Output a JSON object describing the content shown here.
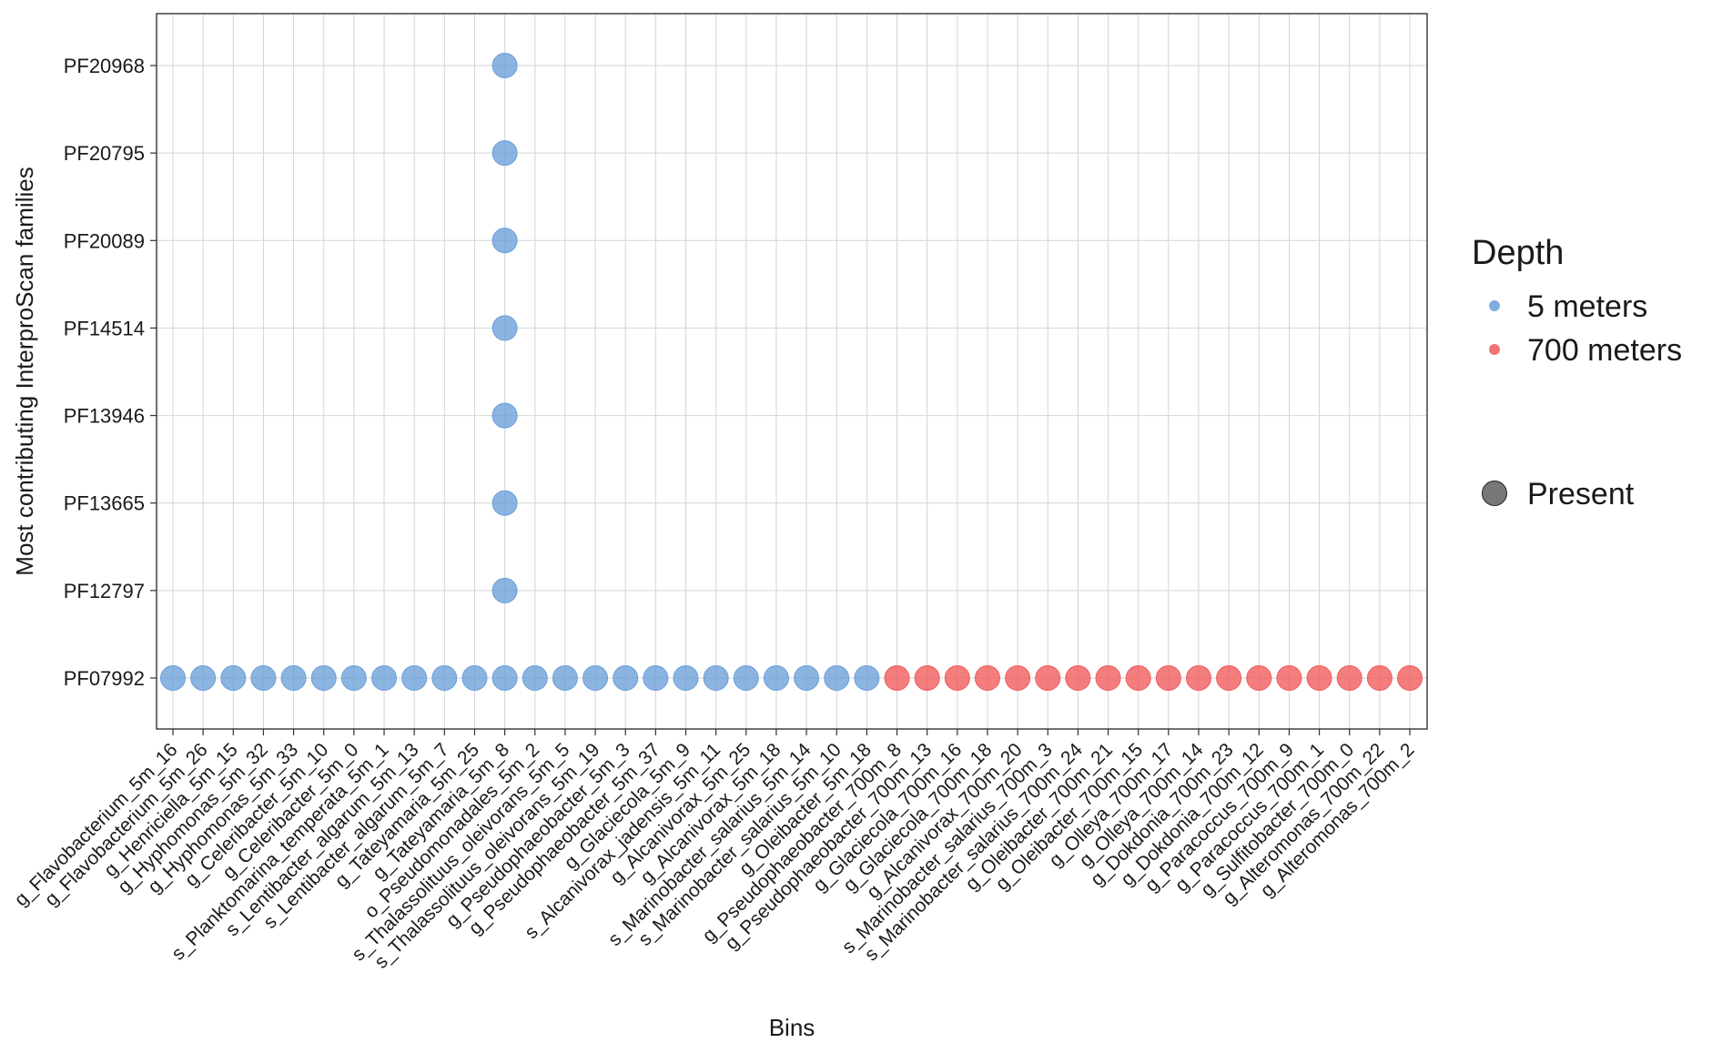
{
  "chart_data": {
    "type": "scatter",
    "xlabel": "Bins",
    "ylabel": "Most contributing InterproScan families",
    "x_categories": [
      "g_Flavobacterium_5m_16",
      "g_Flavobacterium_5m_26",
      "g_Henriciella_5m_15",
      "g_Hyphomonas_5m_32",
      "g_Hyphomonas_5m_33",
      "g_Celeribacter_5m_10",
      "g_Celeribacter_5m_0",
      "s_Planktomarina_temperata_5m_1",
      "s_Lentibacter_algarum_5m_13",
      "s_Lentibacter_algarum_5m_7",
      "g_Tateyamaria_5m_25",
      "g_Tateyamaria_5m_8",
      "o_Pseudomonadales_5m_2",
      "s_Thalassolituus_oleivorans_5m_5",
      "s_Thalassolituus_oleivorans_5m_19",
      "g_Pseudophaeobacter_5m_3",
      "g_Pseudophaeobacter_5m_37",
      "g_Glaciecola_5m_9",
      "s_Alcanivorax_jadensis_5m_11",
      "g_Alcanivorax_5m_25",
      "g_Alcanivorax_5m_18",
      "s_Marinobacter_salarius_5m_14",
      "s_Marinobacter_salarius_5m_10",
      "g_Oleibacter_5m_18",
      "g_Pseudophaeobacter_700m_8",
      "g_Pseudophaeobacter_700m_13",
      "g_Glaciecola_700m_16",
      "g_Glaciecola_700m_18",
      "g_Alcanivorax_700m_20",
      "s_Marinobacter_salarius_700m_3",
      "s_Marinobacter_salarius_700m_24",
      "g_Oleibacter_700m_21",
      "g_Oleibacter_700m_15",
      "g_Olleya_700m_17",
      "g_Olleya_700m_14",
      "g_Dokdonia_700m_23",
      "g_Dokdonia_700m_12",
      "g_Paracoccus_700m_9",
      "g_Paracoccus_700m_1",
      "g_Sulfitobacter_700m_0",
      "g_Alteromonas_700m_22",
      "g_Alteromonas_700m_2"
    ],
    "y_categories": [
      "PF07992",
      "PF12797",
      "PF13665",
      "PF13946",
      "PF14514",
      "PF20089",
      "PF20795",
      "PF20968"
    ],
    "points": [
      {
        "x": "g_Flavobacterium_5m_16",
        "y": "PF07992",
        "depth": "5 meters"
      },
      {
        "x": "g_Flavobacterium_5m_26",
        "y": "PF07992",
        "depth": "5 meters"
      },
      {
        "x": "g_Henriciella_5m_15",
        "y": "PF07992",
        "depth": "5 meters"
      },
      {
        "x": "g_Hyphomonas_5m_32",
        "y": "PF07992",
        "depth": "5 meters"
      },
      {
        "x": "g_Hyphomonas_5m_33",
        "y": "PF07992",
        "depth": "5 meters"
      },
      {
        "x": "g_Celeribacter_5m_10",
        "y": "PF07992",
        "depth": "5 meters"
      },
      {
        "x": "g_Celeribacter_5m_0",
        "y": "PF07992",
        "depth": "5 meters"
      },
      {
        "x": "s_Planktomarina_temperata_5m_1",
        "y": "PF07992",
        "depth": "5 meters"
      },
      {
        "x": "s_Lentibacter_algarum_5m_13",
        "y": "PF07992",
        "depth": "5 meters"
      },
      {
        "x": "s_Lentibacter_algarum_5m_7",
        "y": "PF07992",
        "depth": "5 meters"
      },
      {
        "x": "g_Tateyamaria_5m_25",
        "y": "PF07992",
        "depth": "5 meters"
      },
      {
        "x": "g_Tateyamaria_5m_8",
        "y": "PF07992",
        "depth": "5 meters"
      },
      {
        "x": "g_Tateyamaria_5m_8",
        "y": "PF12797",
        "depth": "5 meters"
      },
      {
        "x": "g_Tateyamaria_5m_8",
        "y": "PF13665",
        "depth": "5 meters"
      },
      {
        "x": "g_Tateyamaria_5m_8",
        "y": "PF13946",
        "depth": "5 meters"
      },
      {
        "x": "g_Tateyamaria_5m_8",
        "y": "PF14514",
        "depth": "5 meters"
      },
      {
        "x": "g_Tateyamaria_5m_8",
        "y": "PF20089",
        "depth": "5 meters"
      },
      {
        "x": "g_Tateyamaria_5m_8",
        "y": "PF20795",
        "depth": "5 meters"
      },
      {
        "x": "g_Tateyamaria_5m_8",
        "y": "PF20968",
        "depth": "5 meters"
      },
      {
        "x": "o_Pseudomonadales_5m_2",
        "y": "PF07992",
        "depth": "5 meters"
      },
      {
        "x": "s_Thalassolituus_oleivorans_5m_5",
        "y": "PF07992",
        "depth": "5 meters"
      },
      {
        "x": "s_Thalassolituus_oleivorans_5m_19",
        "y": "PF07992",
        "depth": "5 meters"
      },
      {
        "x": "g_Pseudophaeobacter_5m_3",
        "y": "PF07992",
        "depth": "5 meters"
      },
      {
        "x": "g_Pseudophaeobacter_5m_37",
        "y": "PF07992",
        "depth": "5 meters"
      },
      {
        "x": "g_Glaciecola_5m_9",
        "y": "PF07992",
        "depth": "5 meters"
      },
      {
        "x": "s_Alcanivorax_jadensis_5m_11",
        "y": "PF07992",
        "depth": "5 meters"
      },
      {
        "x": "g_Alcanivorax_5m_25",
        "y": "PF07992",
        "depth": "5 meters"
      },
      {
        "x": "g_Alcanivorax_5m_18",
        "y": "PF07992",
        "depth": "5 meters"
      },
      {
        "x": "s_Marinobacter_salarius_5m_14",
        "y": "PF07992",
        "depth": "5 meters"
      },
      {
        "x": "s_Marinobacter_salarius_5m_10",
        "y": "PF07992",
        "depth": "5 meters"
      },
      {
        "x": "g_Oleibacter_5m_18",
        "y": "PF07992",
        "depth": "5 meters"
      },
      {
        "x": "g_Pseudophaeobacter_700m_8",
        "y": "PF07992",
        "depth": "700 meters"
      },
      {
        "x": "g_Pseudophaeobacter_700m_13",
        "y": "PF07992",
        "depth": "700 meters"
      },
      {
        "x": "g_Glaciecola_700m_16",
        "y": "PF07992",
        "depth": "700 meters"
      },
      {
        "x": "g_Glaciecola_700m_18",
        "y": "PF07992",
        "depth": "700 meters"
      },
      {
        "x": "g_Alcanivorax_700m_20",
        "y": "PF07992",
        "depth": "700 meters"
      },
      {
        "x": "s_Marinobacter_salarius_700m_3",
        "y": "PF07992",
        "depth": "700 meters"
      },
      {
        "x": "s_Marinobacter_salarius_700m_24",
        "y": "PF07992",
        "depth": "700 meters"
      },
      {
        "x": "g_Oleibacter_700m_21",
        "y": "PF07992",
        "depth": "700 meters"
      },
      {
        "x": "g_Oleibacter_700m_15",
        "y": "PF07992",
        "depth": "700 meters"
      },
      {
        "x": "g_Olleya_700m_17",
        "y": "PF07992",
        "depth": "700 meters"
      },
      {
        "x": "g_Olleya_700m_14",
        "y": "PF07992",
        "depth": "700 meters"
      },
      {
        "x": "g_Dokdonia_700m_23",
        "y": "PF07992",
        "depth": "700 meters"
      },
      {
        "x": "g_Dokdonia_700m_12",
        "y": "PF07992",
        "depth": "700 meters"
      },
      {
        "x": "g_Paracoccus_700m_9",
        "y": "PF07992",
        "depth": "700 meters"
      },
      {
        "x": "g_Paracoccus_700m_1",
        "y": "PF07992",
        "depth": "700 meters"
      },
      {
        "x": "g_Sulfitobacter_700m_0",
        "y": "PF07992",
        "depth": "700 meters"
      },
      {
        "x": "g_Alteromonas_700m_22",
        "y": "PF07992",
        "depth": "700 meters"
      },
      {
        "x": "g_Alteromonas_700m_2",
        "y": "PF07992",
        "depth": "700 meters"
      }
    ],
    "legend": {
      "color_title": "Depth",
      "color_entries": [
        {
          "label": "5 meters",
          "color": "#6a9fd8"
        },
        {
          "label": "700 meters",
          "color": "#f15a5a"
        }
      ],
      "size_entries": [
        {
          "label": "Present",
          "color": "#555555"
        }
      ],
      "placement": "right"
    },
    "grid": true
  }
}
